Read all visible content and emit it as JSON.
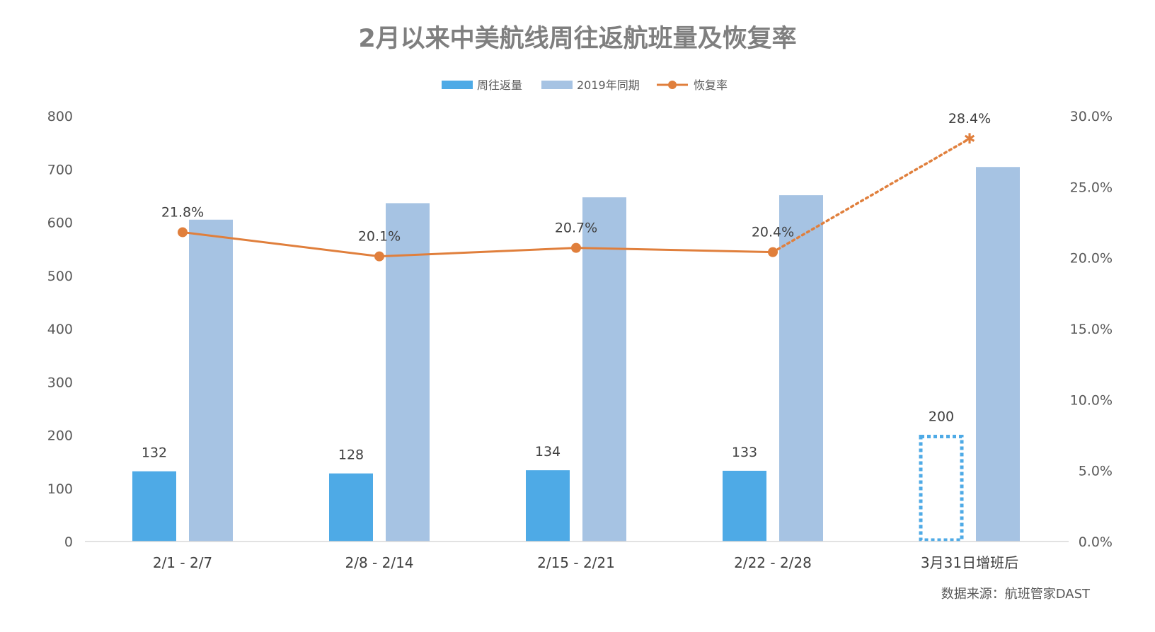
{
  "chart_data": {
    "type": "bar",
    "title": "2月以来中美航线周往返航班量及恢复率",
    "categories": [
      "2/1 - 2/7",
      "2/8 - 2/14",
      "2/15 - 2/21",
      "2/22 - 2/28",
      "3月31日增班后"
    ],
    "series": [
      {
        "name": "周往返量",
        "type": "bar",
        "axis": "left",
        "values": [
          132,
          128,
          134,
          133,
          200
        ],
        "labels": [
          "132",
          "128",
          "134",
          "133",
          "200"
        ],
        "projected": [
          false,
          false,
          false,
          false,
          true
        ]
      },
      {
        "name": "2019年同期",
        "type": "bar",
        "axis": "left",
        "values": [
          605,
          636,
          647,
          651,
          704
        ]
      },
      {
        "name": "恢复率",
        "type": "line",
        "axis": "right",
        "values": [
          21.8,
          20.1,
          20.7,
          20.4,
          28.4
        ],
        "labels": [
          "21.8%",
          "20.1%",
          "20.7%",
          "20.4%",
          "28.4%"
        ],
        "projected": [
          false,
          false,
          false,
          false,
          true
        ]
      }
    ],
    "left_axis": {
      "ylim": [
        0,
        800
      ],
      "ticks": [
        "0",
        "100",
        "200",
        "300",
        "400",
        "500",
        "600",
        "700",
        "800"
      ]
    },
    "right_axis": {
      "ylim": [
        0,
        30
      ],
      "ticks": [
        "0.0%",
        "5.0%",
        "10.0%",
        "15.0%",
        "20.0%",
        "25.0%",
        "30.0%"
      ]
    },
    "legend_position": "top",
    "grid": false,
    "colors": {
      "current": "#4eaae6",
      "previous": "#a6c3e3",
      "rate": "#e07f3c",
      "axis": "#d9d9d9"
    }
  },
  "source": "数据来源：航班管家DAST"
}
